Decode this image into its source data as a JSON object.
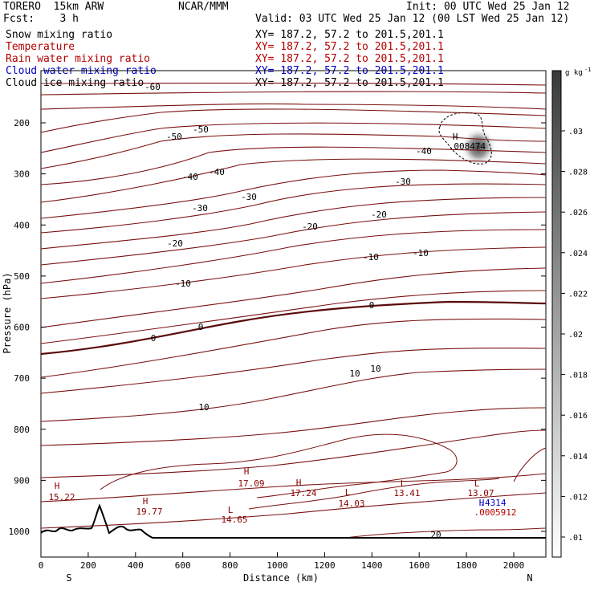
{
  "header": {
    "model": "TORERO  15km ARW",
    "center": "NCAR/MMM",
    "init": "Init: 00 UTC Wed 25 Jan 12",
    "fcst": "Fcst:    3 h",
    "valid": "Valid: 03 UTC Wed 25 Jan 12 (00 LST Wed 25 Jan 12)"
  },
  "legend": [
    {
      "label": "Snow mixing ratio",
      "xsec": "XY= 187.2, 57.2 to 201.5,201.1",
      "color": "#000000"
    },
    {
      "label": "Temperature",
      "xsec": "XY= 187.2, 57.2 to 201.5,201.1",
      "color": "#b40000"
    },
    {
      "label": "Rain water mixing ratio",
      "xsec": "XY= 187.2, 57.2 to 201.5,201.1",
      "color": "#b40000"
    },
    {
      "label": "Cloud water mixing ratio",
      "xsec": "XY= 187.2, 57.2 to 201.5,201.1",
      "color": "#0000c8"
    },
    {
      "label": "Cloud ice mixing ratio",
      "xsec": "XY= 187.2, 57.2 to 201.5,201.1",
      "color": "#000000"
    }
  ],
  "chart_data": {
    "type": "cross-section contour",
    "xlabel": "Distance (km)",
    "ylabel": "Pressure (hPa)",
    "xlim": [
      0,
      2170
    ],
    "ylim": [
      1050,
      80
    ],
    "x_ticks": [
      0,
      200,
      400,
      600,
      800,
      1000,
      1200,
      1400,
      1600,
      1800,
      2000
    ],
    "y_ticks": [
      200,
      300,
      400,
      500,
      600,
      700,
      800,
      900,
      1000
    ],
    "x_ends": {
      "left": "S",
      "right": "N"
    },
    "colorbar": {
      "unit": "g kg",
      "unit_exp": "-1",
      "ticks": [
        ".03",
        ".028",
        ".026",
        ".024",
        ".022",
        ".02",
        ".018",
        ".016",
        ".014",
        ".012",
        ".01"
      ]
    },
    "temperature_contour_labels": [
      "-60",
      "-50",
      "-50",
      "-40",
      "-40",
      "-40",
      "-30",
      "-30",
      "-30",
      "-20",
      "-20",
      "-20",
      "-10",
      "-10",
      "-10",
      "0",
      "0",
      "0",
      "10",
      "10",
      "10",
      "20"
    ],
    "extrema": [
      {
        "kind": "H",
        "value": "15.22"
      },
      {
        "kind": "H",
        "value": "19.77"
      },
      {
        "kind": "H",
        "value": "17.09"
      },
      {
        "kind": "H",
        "value": "17.24"
      },
      {
        "kind": "L",
        "value": "14.65"
      },
      {
        "kind": "L",
        "value": "14.03"
      },
      {
        "kind": "L",
        "value": "13.41"
      },
      {
        "kind": "L",
        "value": "13.07"
      }
    ],
    "snow_max": {
      "kind": "H",
      "value": ".008474"
    },
    "cloud_water_max": {
      "kind": "H",
      "value": ".4314"
    },
    "rain_max": {
      "value": ".0005912"
    }
  }
}
